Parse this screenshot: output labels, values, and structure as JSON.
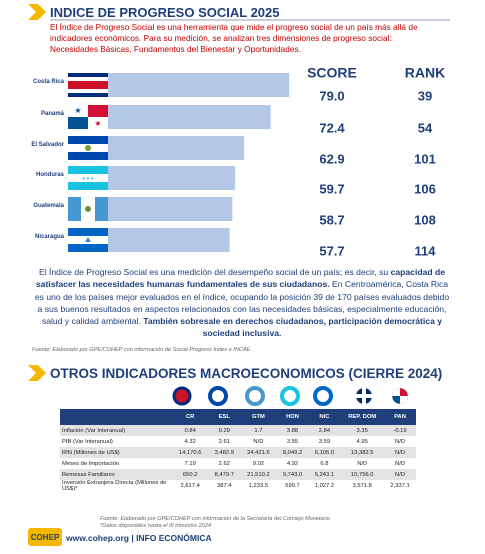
{
  "header": {
    "title": "INDICE DE PROGRESO SOCIAL 2025",
    "intro": "El Índice de Progreso Social es una herramienta que mide el progreso social de un país más allá de indicadores económicos. Para su medición, se analizan tres dimensiones de progreso social: Necesidades Básicas, Fundamentos del Bienestar y Oportunidades."
  },
  "chart_data": {
    "type": "bar",
    "categories": [
      "Costa Rica",
      "Panamá",
      "El Salvador",
      "Honduras",
      "Guatemala",
      "Nicaragua"
    ],
    "values": [
      79.0,
      72.4,
      62.9,
      59.7,
      58.7,
      57.7
    ],
    "value_labels": [
      "79.0",
      "72.4",
      "62.9",
      "59.7",
      "58.7",
      "57.7"
    ],
    "color": "#b4c7e7",
    "score_header": "SCORE",
    "rank_header": "RANK",
    "ranks": [
      39,
      54,
      101,
      106,
      108,
      114
    ]
  },
  "body": {
    "segments": [
      {
        "text": "El Índice de Progreso Social es una medición del desempeño social de un país; es decir, su ",
        "bold": false
      },
      {
        "text": "capacidad de satisfacer las necesidades humanas fundamentales de sus ciudadanos.",
        "bold": true
      },
      {
        "text": " En Centroamérica, Costa Rica es uno de los países mejor evaluados en el índice, ocupando la posición 39 de 170 países evaluados debido a sus buenos resultados en aspectos relacionados con las necesidades básicas, especialmente educación, salud y calidad ambiental. ",
        "bold": false
      },
      {
        "text": "También sobresale en derechos ciudadanos, participación democrática y sociedad inclusiva.",
        "bold": true
      }
    ],
    "source": "Fuente: Elaborado por GPE/COHEP con información de Social Progress Index e INCAE"
  },
  "section2": {
    "title": "OTROS INDICADORES MACROECONOMICOS (CIERRE 2024)"
  },
  "table": {
    "header": [
      "CR",
      "ESL",
      "GTM",
      "HON",
      "NIC",
      "REP. DOM",
      "PAN"
    ],
    "rows": [
      [
        "Inflación (Var Interanual)",
        "0.84",
        "0.29",
        "1.7",
        "3.88",
        "2.84",
        "3.35",
        "-0.19"
      ],
      [
        "PIB (Var Interanual)",
        "4.32",
        "2.61",
        "N/D",
        "3.55",
        "3.59",
        "4.95",
        "N/D"
      ],
      [
        "RIN (Millones de US$)",
        "14,170.6",
        "3,482.9",
        "24,421.6",
        "8,049.2",
        "6,105.0",
        "13,382.5",
        "N/D"
      ],
      [
        "Meses de Importación",
        "7.19",
        "2.62",
        "9.02",
        "4.92",
        "6.8",
        "N/D",
        "N/D"
      ],
      [
        "Remesas Familiares",
        "650.2",
        "8,479.7",
        "21,510.2",
        "9,743.0",
        "5,243.1",
        "10,756.0",
        "N/D"
      ],
      [
        "Inversión Extranjera Directa (Millones de US$)*",
        "2,617.4",
        "387.4",
        "1,233.5",
        "590.7",
        "1,027.2",
        "3,571.8",
        "2,337.1"
      ]
    ]
  },
  "notes": [
    "Fuente: Elaborado por GPE/COHEP con información de la Secretaría del Consejo Monetario",
    "*Datos disponibles hasta el III trimestre 2024"
  ],
  "footer": {
    "logo": "COHEP",
    "text": "www.cohep.org | INFO ECONÓMICA"
  }
}
